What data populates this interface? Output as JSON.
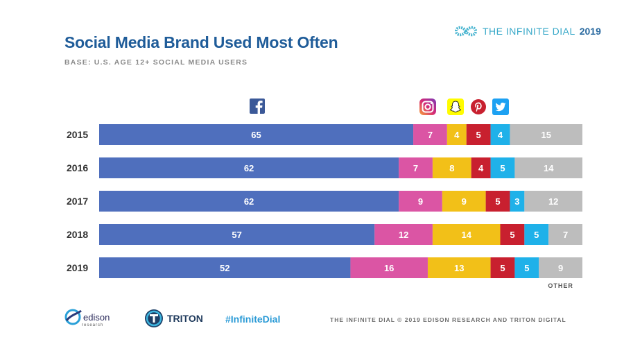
{
  "header": {
    "title": "Social Media Brand Used Most Often",
    "subtitle": "BASE: U.S. AGE 12+ SOCIAL MEDIA USERS",
    "brand_word": "THE INFINITE DIAL",
    "brand_year": "2019"
  },
  "footer": {
    "edison_name": "edison",
    "edison_sub": "research",
    "triton_name": "TRITON",
    "hashtag": "#InfiniteDial",
    "copyright": "THE INFINITE DIAL   © 2019 EDISON RESEARCH AND TRITON DIGITAL"
  },
  "icons": [
    "facebook-icon",
    "instagram-icon",
    "snapchat-icon",
    "pinterest-icon",
    "twitter-icon"
  ],
  "chart_data": {
    "type": "bar",
    "orientation": "horizontal",
    "stacked": true,
    "categories": [
      "2015",
      "2016",
      "2017",
      "2018",
      "2019"
    ],
    "series": [
      {
        "name": "Facebook",
        "color": "#4f6fbd",
        "values": [
          65,
          62,
          62,
          57,
          52
        ]
      },
      {
        "name": "Instagram",
        "color": "#db55a4",
        "values": [
          7,
          7,
          9,
          12,
          16
        ]
      },
      {
        "name": "Snapchat",
        "color": "#f2c018",
        "values": [
          4,
          8,
          9,
          14,
          13
        ]
      },
      {
        "name": "Pinterest",
        "color": "#c8202f",
        "values": [
          5,
          4,
          5,
          5,
          5
        ]
      },
      {
        "name": "Twitter",
        "color": "#1fb1e9",
        "values": [
          4,
          5,
          3,
          5,
          5
        ]
      },
      {
        "name": "OTHER",
        "color": "#bdbdbd",
        "values": [
          15,
          14,
          12,
          7,
          9
        ]
      }
    ],
    "other_label": "OTHER",
    "xlim": [
      0,
      100
    ],
    "grid": false,
    "legend": "icons above bars"
  }
}
